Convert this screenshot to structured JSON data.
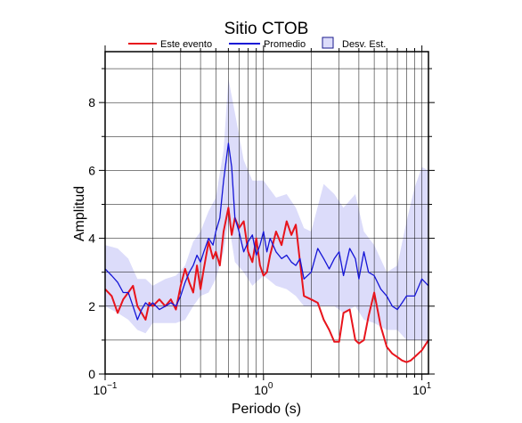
{
  "chart_data": {
    "type": "line",
    "title": "Sitio CTOB",
    "xlabel": "Periodo (s)",
    "ylabel": "Amplitud",
    "xscale": "log",
    "xlim": [
      0.1,
      11
    ],
    "ylim": [
      0,
      9.5
    ],
    "grid": true,
    "legend": {
      "placement": "top",
      "entries": [
        "Este evento",
        "Promedio",
        "Desv. Est."
      ]
    },
    "x_ticks": [
      {
        "label": "10",
        "exp": "−1",
        "value": 0.1
      },
      {
        "label": "10",
        "exp": "0",
        "value": 1
      },
      {
        "label": "10",
        "exp": "1",
        "value": 10
      }
    ],
    "y_ticks": [
      {
        "label": "0",
        "value": 0
      },
      {
        "label": "2",
        "value": 2
      },
      {
        "label": "4",
        "value": 4
      },
      {
        "label": "6",
        "value": 6
      },
      {
        "label": "8",
        "value": 8
      }
    ],
    "colors": {
      "este_evento": "#e8141c",
      "promedio": "#1515d6",
      "band_fill": "#dcdcfa",
      "band_edge": "#1a1a8c",
      "grid": "#000000"
    },
    "series": [
      {
        "name": "Este evento",
        "x": [
          0.1,
          0.11,
          0.12,
          0.13,
          0.14,
          0.15,
          0.16,
          0.17,
          0.18,
          0.19,
          0.2,
          0.22,
          0.24,
          0.26,
          0.28,
          0.3,
          0.32,
          0.34,
          0.36,
          0.38,
          0.4,
          0.42,
          0.45,
          0.48,
          0.5,
          0.53,
          0.56,
          0.6,
          0.63,
          0.66,
          0.7,
          0.75,
          0.8,
          0.85,
          0.9,
          0.95,
          1.0,
          1.05,
          1.1,
          1.2,
          1.3,
          1.4,
          1.5,
          1.6,
          1.7,
          1.8,
          2.0,
          2.2,
          2.4,
          2.6,
          2.8,
          3.0,
          3.2,
          3.5,
          3.8,
          4.0,
          4.3,
          4.6,
          5.0,
          5.5,
          6.0,
          6.5,
          7.0,
          7.5,
          8.0,
          8.5,
          9.0,
          10.0,
          11.0
        ],
        "values": [
          2.5,
          2.3,
          1.8,
          2.2,
          2.4,
          2.6,
          2.0,
          1.8,
          1.6,
          2.1,
          2.0,
          2.2,
          2.0,
          2.2,
          1.9,
          2.6,
          3.1,
          2.7,
          2.4,
          3.2,
          2.5,
          3.1,
          3.9,
          3.4,
          3.6,
          3.2,
          4.2,
          4.9,
          4.1,
          4.6,
          4.3,
          4.5,
          3.6,
          3.3,
          4.0,
          3.2,
          2.9,
          3.0,
          3.5,
          4.2,
          3.8,
          4.5,
          4.1,
          4.4,
          3.3,
          2.3,
          2.2,
          2.1,
          1.6,
          1.3,
          0.95,
          0.95,
          1.8,
          1.9,
          1.0,
          0.9,
          1.0,
          1.7,
          2.4,
          1.4,
          0.8,
          0.6,
          0.5,
          0.4,
          0.35,
          0.4,
          0.5,
          0.7,
          1.0
        ]
      },
      {
        "name": "Promedio",
        "x": [
          0.1,
          0.11,
          0.12,
          0.13,
          0.14,
          0.15,
          0.16,
          0.17,
          0.18,
          0.19,
          0.2,
          0.22,
          0.24,
          0.26,
          0.28,
          0.3,
          0.32,
          0.34,
          0.36,
          0.38,
          0.4,
          0.42,
          0.45,
          0.48,
          0.5,
          0.53,
          0.56,
          0.6,
          0.63,
          0.66,
          0.7,
          0.75,
          0.8,
          0.85,
          0.9,
          0.95,
          1.0,
          1.05,
          1.1,
          1.2,
          1.3,
          1.4,
          1.5,
          1.6,
          1.7,
          1.8,
          2.0,
          2.2,
          2.4,
          2.6,
          2.8,
          3.0,
          3.2,
          3.5,
          3.8,
          4.0,
          4.3,
          4.6,
          5.0,
          5.5,
          6.0,
          6.5,
          7.0,
          7.5,
          8.0,
          8.5,
          9.0,
          10.0,
          11.0
        ],
        "values": [
          3.1,
          2.9,
          2.7,
          2.4,
          2.4,
          2.0,
          1.6,
          1.9,
          2.1,
          2.0,
          2.1,
          1.9,
          2.0,
          2.1,
          2.0,
          2.3,
          2.7,
          3.0,
          3.2,
          3.5,
          3.3,
          3.6,
          4.0,
          3.8,
          4.2,
          4.6,
          5.7,
          6.8,
          6.1,
          4.6,
          4.2,
          3.6,
          3.9,
          4.1,
          3.5,
          3.8,
          4.2,
          3.6,
          4.0,
          3.6,
          3.4,
          3.5,
          3.3,
          3.2,
          3.4,
          2.8,
          3.0,
          3.7,
          3.4,
          3.1,
          3.4,
          3.6,
          2.9,
          3.7,
          3.4,
          2.8,
          3.6,
          3.0,
          2.9,
          2.5,
          2.3,
          2.0,
          1.9,
          2.1,
          2.3,
          2.3,
          2.3,
          2.8,
          2.6
        ]
      }
    ],
    "band": {
      "name": "Desv. Est.",
      "x": [
        0.1,
        0.12,
        0.14,
        0.16,
        0.18,
        0.2,
        0.24,
        0.28,
        0.32,
        0.36,
        0.4,
        0.45,
        0.5,
        0.56,
        0.6,
        0.66,
        0.75,
        0.85,
        1.0,
        1.2,
        1.4,
        1.6,
        1.8,
        2.0,
        2.4,
        2.8,
        3.2,
        3.8,
        4.3,
        5.0,
        6.0,
        7.0,
        8.0,
        9.0,
        10.0,
        11.0
      ],
      "lower": [
        2.0,
        1.8,
        1.6,
        1.3,
        1.2,
        1.5,
        1.5,
        1.5,
        1.6,
        2.0,
        2.3,
        2.4,
        2.8,
        3.6,
        4.5,
        3.3,
        3.0,
        2.6,
        2.9,
        2.6,
        2.5,
        2.3,
        2.0,
        2.0,
        2.0,
        2.0,
        1.8,
        2.0,
        1.6,
        1.5,
        1.3,
        1.3,
        1.0,
        1.0,
        1.0,
        0.9
      ],
      "upper": [
        3.8,
        3.7,
        3.4,
        2.8,
        2.8,
        2.6,
        2.8,
        2.9,
        3.2,
        3.9,
        4.2,
        4.8,
        5.2,
        6.6,
        8.7,
        7.7,
        6.3,
        5.7,
        5.7,
        5.2,
        5.3,
        4.9,
        4.3,
        4.2,
        5.6,
        5.3,
        4.9,
        5.3,
        4.2,
        3.8,
        3.0,
        3.2,
        4.5,
        5.5,
        6.1,
        6.0
      ]
    }
  }
}
